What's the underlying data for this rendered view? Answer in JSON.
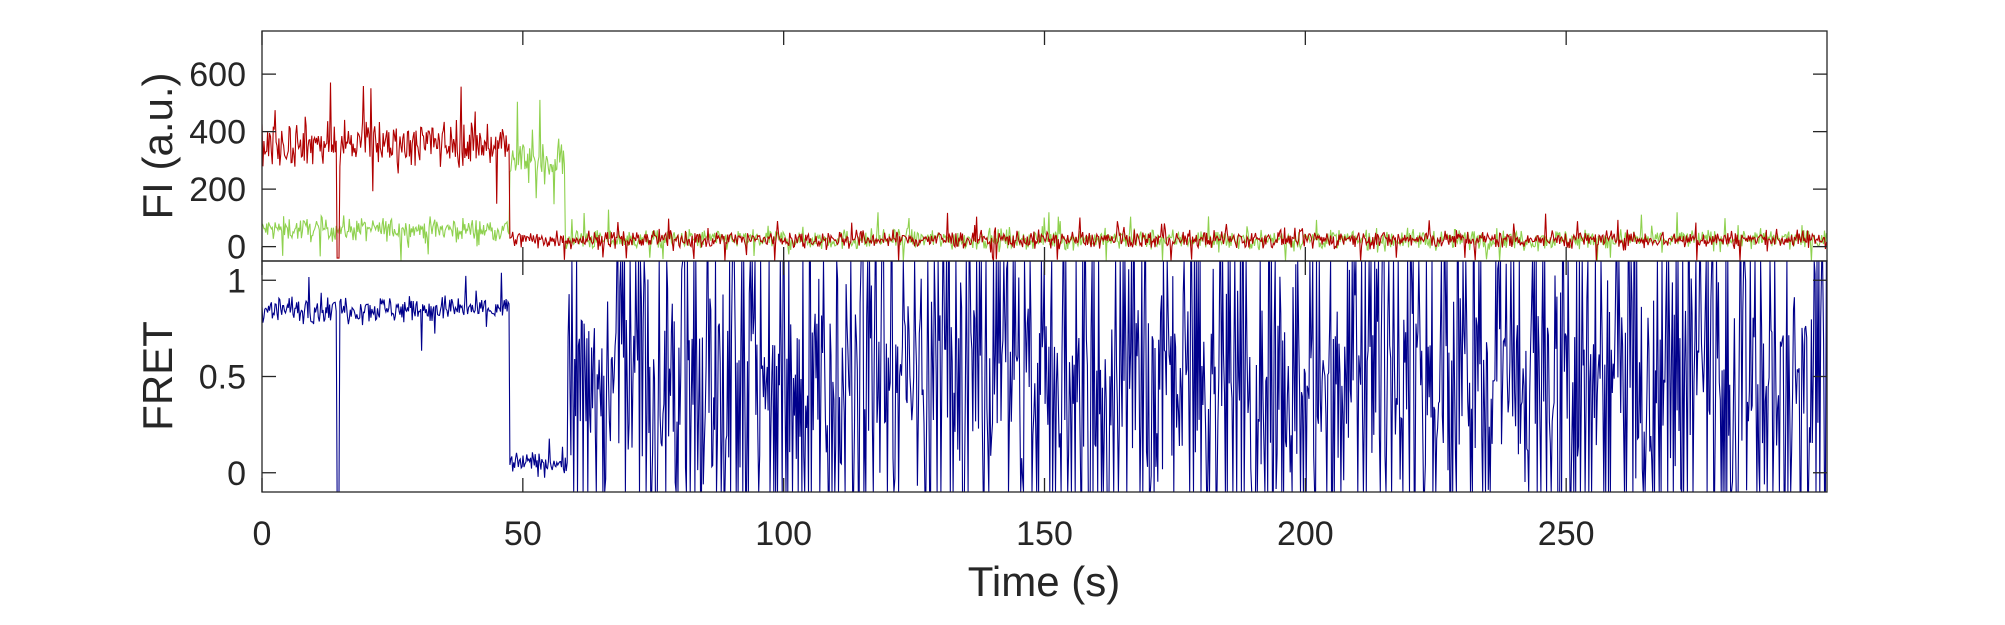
{
  "chart_data": [
    {
      "type": "line",
      "panel": "intensity",
      "title": "",
      "xlabel": "",
      "ylabel": "FI (a.u.)",
      "xlim": [
        0,
        300
      ],
      "ylim": [
        -50,
        750
      ],
      "yticks": [
        0,
        200,
        400,
        600
      ],
      "yticklabels": [
        "0",
        "200",
        "400",
        "600"
      ],
      "grid": false,
      "legend": "none",
      "series": [
        {
          "color": "#b00000",
          "segments": [
            {
              "x_start": 0,
              "x_end": 47.5,
              "mean": 360,
              "noise": 80
            },
            {
              "x_start": 47.5,
              "x_end": 300,
              "mean": 25,
              "noise": 30
            }
          ],
          "dips": [
            {
              "x": 14.5,
              "value": -40
            }
          ]
        },
        {
          "color": "#8fd14f",
          "segments": [
            {
              "x_start": 0,
              "x_end": 47.5,
              "mean": 60,
              "noise": 40
            },
            {
              "x_start": 47.5,
              "x_end": 58,
              "mean": 300,
              "noise": 80
            },
            {
              "x_start": 58,
              "x_end": 300,
              "mean": 25,
              "noise": 35
            }
          ]
        }
      ]
    },
    {
      "type": "line",
      "panel": "fret",
      "title": "",
      "xlabel": "Time (s)",
      "ylabel": "FRET",
      "xlim": [
        0,
        300
      ],
      "ylim": [
        -0.1,
        1.1
      ],
      "xticks": [
        0,
        50,
        100,
        150,
        200,
        250
      ],
      "xticklabels": [
        "0",
        "50",
        "100",
        "150",
        "200",
        "250"
      ],
      "yticks": [
        0,
        0.5,
        1
      ],
      "yticklabels": [
        "0",
        "0.5",
        "1"
      ],
      "grid": false,
      "legend": "none",
      "series": [
        {
          "color": "#00008b",
          "segments": [
            {
              "x_start": 0,
              "x_end": 47.5,
              "mean": 0.85,
              "noise": 0.07,
              "kind": "noisy"
            },
            {
              "x_start": 47.5,
              "x_end": 58.5,
              "mean": 0.05,
              "noise": 0.06,
              "kind": "noisy"
            },
            {
              "x_start": 58.5,
              "x_end": 300,
              "mean": 0.5,
              "noise": 0.55,
              "kind": "random"
            }
          ],
          "dips": [
            {
              "x": 14.5,
              "value": -0.1
            }
          ]
        }
      ]
    }
  ]
}
